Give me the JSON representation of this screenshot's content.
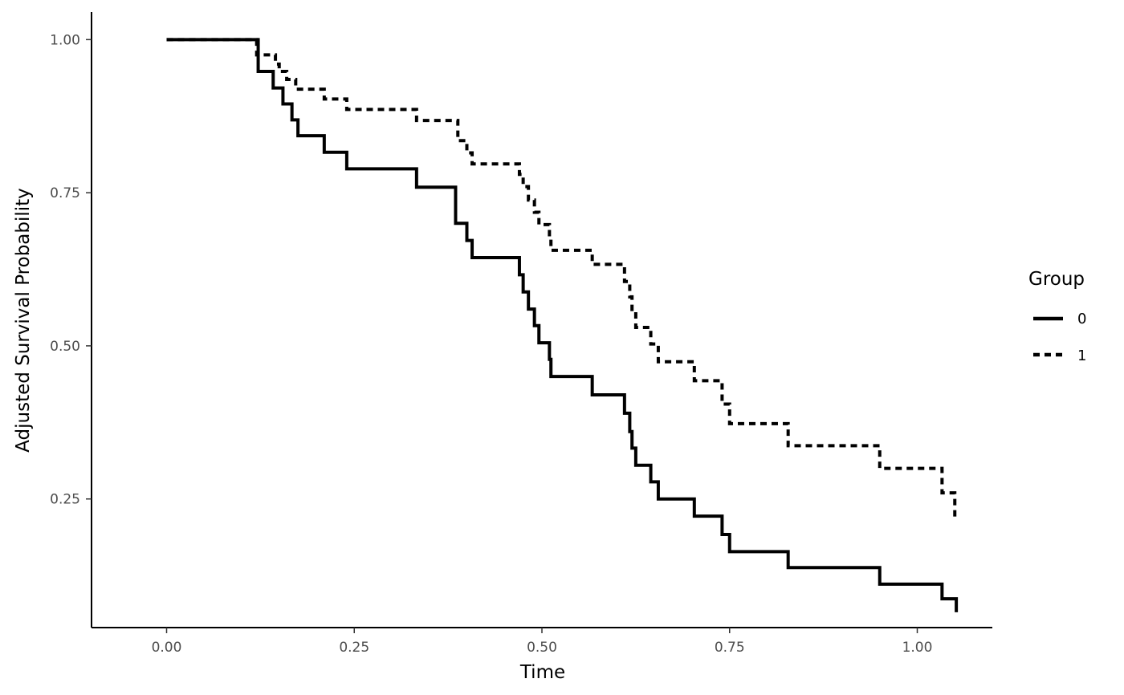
{
  "chart_data": {
    "type": "line",
    "step": true,
    "xlabel": "Time",
    "ylabel": "Adjusted Survival Probability",
    "xlim": [
      -0.1,
      1.1
    ],
    "ylim": [
      0.04,
      1.045
    ],
    "xticks": [
      0.0,
      0.25,
      0.5,
      0.75,
      1.0
    ],
    "xtick_labels": [
      "0.00",
      "0.25",
      "0.50",
      "0.75",
      "1.00"
    ],
    "yticks": [
      0.25,
      0.5,
      0.75,
      1.0
    ],
    "ytick_labels": [
      "0.25",
      "0.50",
      "0.75",
      "1.00"
    ],
    "grid": false,
    "legend": {
      "title": "Group",
      "position": "right"
    },
    "series": [
      {
        "name": "0",
        "line_style": "solid",
        "color": "#000000",
        "points": [
          [
            0.0,
            1.0
          ],
          [
            0.122,
            0.948
          ],
          [
            0.142,
            0.921
          ],
          [
            0.155,
            0.895
          ],
          [
            0.167,
            0.869
          ],
          [
            0.175,
            0.843
          ],
          [
            0.21,
            0.816
          ],
          [
            0.24,
            0.789
          ],
          [
            0.333,
            0.759
          ],
          [
            0.385,
            0.7
          ],
          [
            0.4,
            0.672
          ],
          [
            0.407,
            0.644
          ],
          [
            0.47,
            0.616
          ],
          [
            0.475,
            0.588
          ],
          [
            0.482,
            0.56
          ],
          [
            0.49,
            0.533
          ],
          [
            0.496,
            0.505
          ],
          [
            0.51,
            0.478
          ],
          [
            0.512,
            0.45
          ],
          [
            0.567,
            0.42
          ],
          [
            0.61,
            0.39
          ],
          [
            0.617,
            0.36
          ],
          [
            0.62,
            0.333
          ],
          [
            0.625,
            0.305
          ],
          [
            0.645,
            0.278
          ],
          [
            0.655,
            0.25
          ],
          [
            0.703,
            0.222
          ],
          [
            0.74,
            0.192
          ],
          [
            0.75,
            0.164
          ],
          [
            0.828,
            0.138
          ],
          [
            0.95,
            0.111
          ],
          [
            1.033,
            0.087
          ],
          [
            1.052,
            0.065
          ]
        ]
      },
      {
        "name": "1",
        "line_style": "dashed",
        "color": "#000000",
        "points": [
          [
            0.0,
            1.0
          ],
          [
            0.12,
            0.975
          ],
          [
            0.145,
            0.96
          ],
          [
            0.15,
            0.948
          ],
          [
            0.16,
            0.935
          ],
          [
            0.172,
            0.919
          ],
          [
            0.21,
            0.903
          ],
          [
            0.24,
            0.886
          ],
          [
            0.333,
            0.868
          ],
          [
            0.388,
            0.835
          ],
          [
            0.4,
            0.815
          ],
          [
            0.407,
            0.797
          ],
          [
            0.47,
            0.78
          ],
          [
            0.475,
            0.76
          ],
          [
            0.482,
            0.738
          ],
          [
            0.49,
            0.718
          ],
          [
            0.496,
            0.698
          ],
          [
            0.51,
            0.676
          ],
          [
            0.512,
            0.656
          ],
          [
            0.567,
            0.633
          ],
          [
            0.61,
            0.605
          ],
          [
            0.617,
            0.58
          ],
          [
            0.62,
            0.555
          ],
          [
            0.625,
            0.53
          ],
          [
            0.645,
            0.503
          ],
          [
            0.655,
            0.474
          ],
          [
            0.703,
            0.443
          ],
          [
            0.74,
            0.405
          ],
          [
            0.75,
            0.373
          ],
          [
            0.828,
            0.337
          ],
          [
            0.95,
            0.3
          ],
          [
            1.033,
            0.26
          ],
          [
            1.05,
            0.22
          ]
        ]
      }
    ]
  }
}
